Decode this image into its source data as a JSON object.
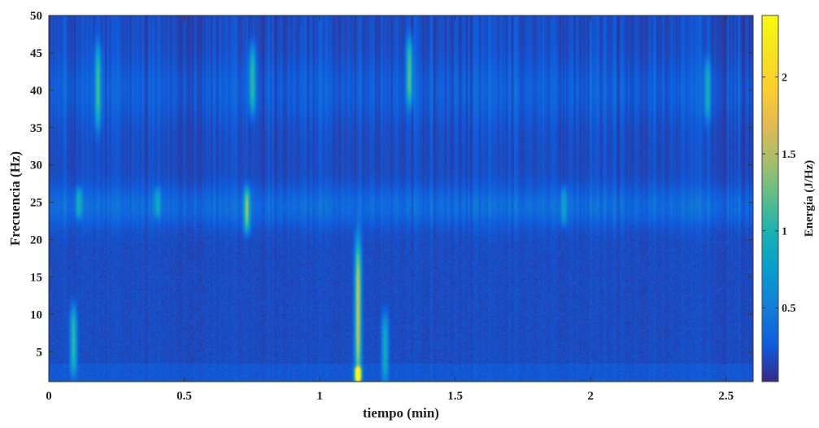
{
  "chart_data": {
    "type": "heatmap",
    "title": "",
    "xlabel": "tiempo (min)",
    "ylabel": "Frecuencia (Hz)",
    "xlim": [
      0,
      2.6
    ],
    "ylim": [
      1,
      50
    ],
    "x_ticks": [
      "0",
      "0.5",
      "1",
      "1.5",
      "2",
      "2.5"
    ],
    "y_ticks": [
      "5",
      "10",
      "15",
      "20",
      "25",
      "30",
      "35",
      "40",
      "45",
      "50"
    ],
    "colorbar": {
      "label": "Energía (J/Hz)",
      "range": [
        0.02,
        2.4
      ],
      "ticks": [
        "0.5",
        "1",
        "1.5",
        "2"
      ],
      "colormap": "parula"
    },
    "base_level": 0.18,
    "features": [
      {
        "type": "band",
        "freq": 24.5,
        "width": 2.5,
        "amp": 0.2
      },
      {
        "type": "band",
        "freq": 40.0,
        "width": 4.0,
        "amp": 0.1
      },
      {
        "type": "event",
        "t": 1.14,
        "fmin": 1,
        "fmax": 20,
        "amp": 1.4
      },
      {
        "type": "event",
        "t": 1.24,
        "fmin": 1,
        "fmax": 10,
        "amp": 0.7
      },
      {
        "type": "event",
        "t": 0.09,
        "fmin": 2,
        "fmax": 11,
        "amp": 0.9
      },
      {
        "type": "event",
        "t": 1.14,
        "fmin": 1,
        "fmax": 3,
        "amp": 2.0
      },
      {
        "type": "event",
        "t": 0.73,
        "fmin": 21,
        "fmax": 27,
        "amp": 1.0
      },
      {
        "type": "event",
        "t": 0.18,
        "fmin": 35,
        "fmax": 46,
        "amp": 0.8
      },
      {
        "type": "event",
        "t": 0.75,
        "fmin": 37,
        "fmax": 46,
        "amp": 0.8
      },
      {
        "type": "event",
        "t": 1.33,
        "fmin": 38,
        "fmax": 47,
        "amp": 0.9
      },
      {
        "type": "event",
        "t": 2.43,
        "fmin": 36,
        "fmax": 44,
        "amp": 0.6
      },
      {
        "type": "event",
        "t": 0.11,
        "fmin": 23,
        "fmax": 27,
        "amp": 0.6
      },
      {
        "type": "event",
        "t": 0.4,
        "fmin": 23,
        "fmax": 27,
        "amp": 0.5
      },
      {
        "type": "event",
        "t": 1.9,
        "fmin": 22,
        "fmax": 27,
        "amp": 0.5
      }
    ]
  }
}
